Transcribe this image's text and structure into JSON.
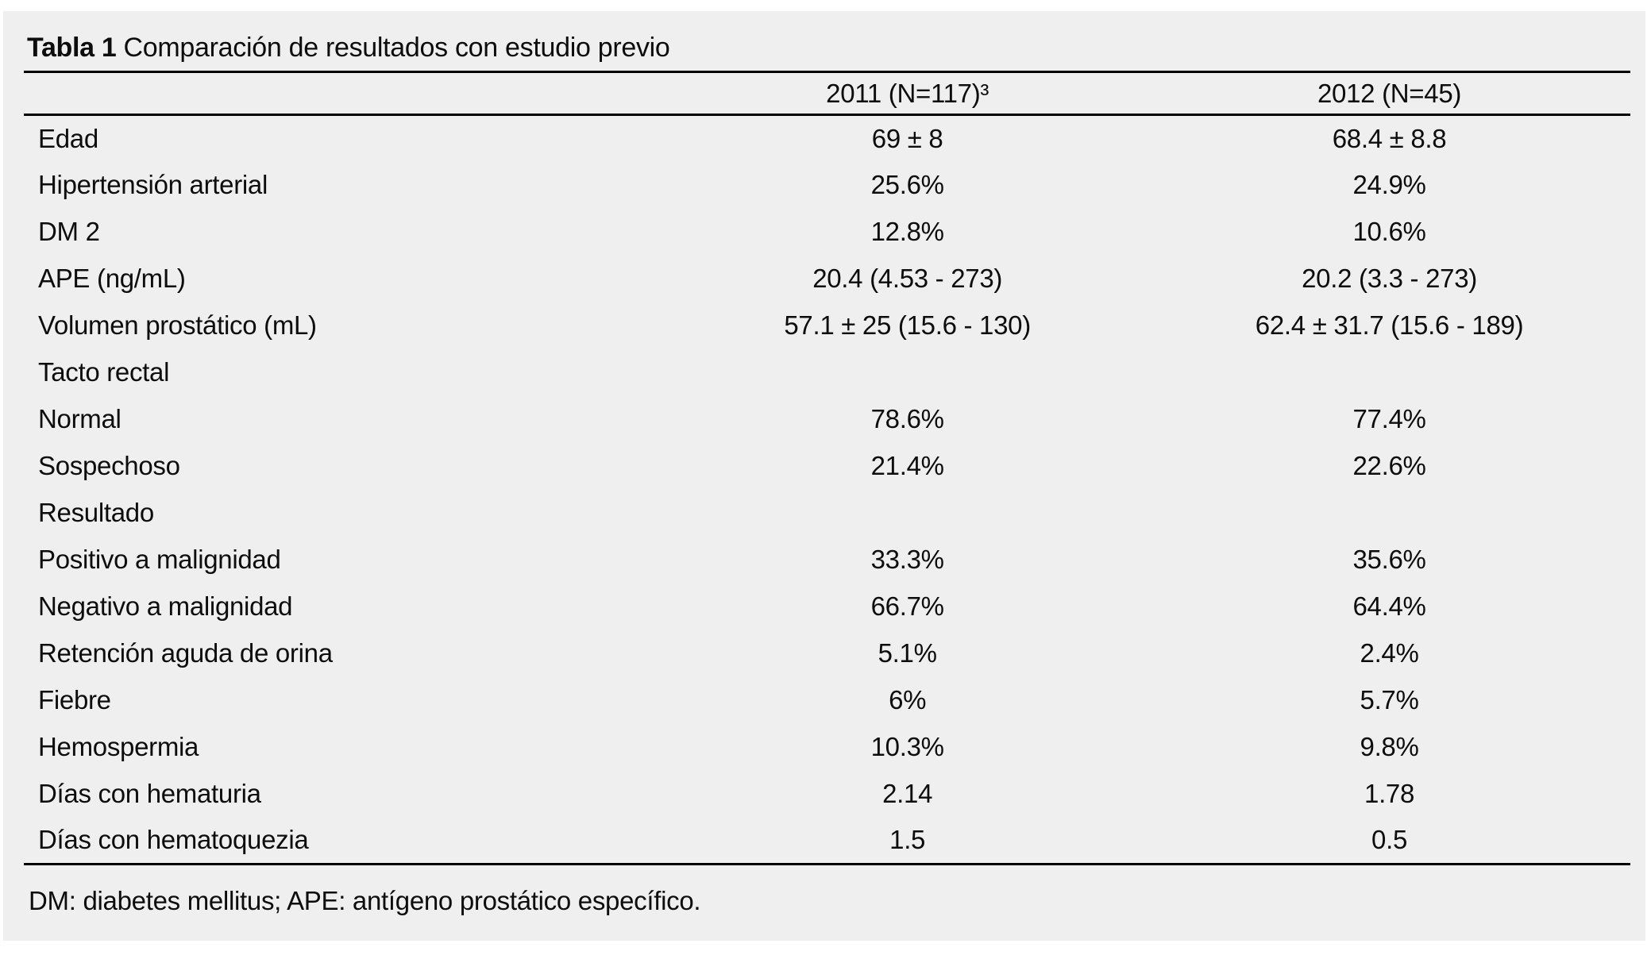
{
  "table": {
    "number_label": "Tabla 1",
    "caption": "Comparación de resultados con estudio previo",
    "columns": [
      "2011 (N=117)³",
      "2012 (N=45)"
    ],
    "rows": [
      {
        "label": "Edad",
        "values": [
          "69 ± 8",
          "68.4 ± 8.8"
        ]
      },
      {
        "label": "Hipertensión arterial",
        "values": [
          "25.6%",
          "24.9%"
        ]
      },
      {
        "label": "DM 2",
        "values": [
          "12.8%",
          "10.6%"
        ]
      },
      {
        "label": "APE (ng/mL)",
        "values": [
          "20.4 (4.53 - 273)",
          "20.2 (3.3 - 273)"
        ]
      },
      {
        "label": "Volumen prostático (mL)",
        "values": [
          "57.1 ± 25 (15.6 - 130)",
          "62.4 ± 31.7 (15.6 - 189)"
        ]
      },
      {
        "label": "Tacto rectal",
        "values": [
          "",
          ""
        ]
      },
      {
        "label": "Normal",
        "values": [
          "78.6%",
          "77.4%"
        ]
      },
      {
        "label": "Sospechoso",
        "values": [
          "21.4%",
          "22.6%"
        ]
      },
      {
        "label": "Resultado",
        "values": [
          "",
          ""
        ]
      },
      {
        "label": "Positivo a malignidad",
        "values": [
          "33.3%",
          "35.6%"
        ]
      },
      {
        "label": "Negativo a malignidad",
        "values": [
          "66.7%",
          "64.4%"
        ]
      },
      {
        "label": "Retención aguda de orina",
        "values": [
          "5.1%",
          "2.4%"
        ]
      },
      {
        "label": "Fiebre",
        "values": [
          "6%",
          "5.7%"
        ]
      },
      {
        "label": "Hemospermia",
        "values": [
          "10.3%",
          "9.8%"
        ]
      },
      {
        "label": "Días con hematuria",
        "values": [
          "2.14",
          "1.78"
        ]
      },
      {
        "label": "Días con hematoquezia",
        "values": [
          "1.5",
          "0.5"
        ]
      }
    ],
    "footnote": "DM: diabetes mellitus; APE: antígeno prostático específico.",
    "colors": {
      "panel_background": "#efefef",
      "text": "#0d0d0d",
      "rule": "#000000"
    }
  }
}
